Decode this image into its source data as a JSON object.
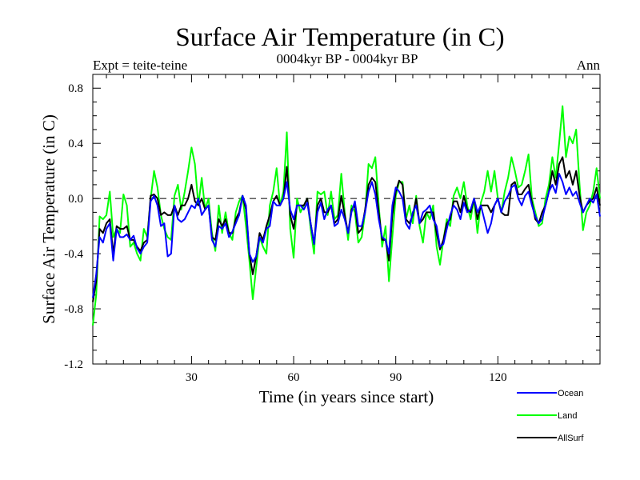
{
  "chart_data": {
    "type": "line",
    "title": "Surface Air Temperature (in C)",
    "subtitle": "0004kyr BP - 0004kyr BP",
    "left_label": "Expt = teite-teine",
    "right_label": "Ann",
    "xlabel": "Time (in years since start)",
    "ylabel": "Surface Air Temperature (in C)",
    "xlim": [
      1,
      150
    ],
    "ylim": [
      -1.2,
      0.9
    ],
    "xticks": [
      30,
      60,
      90,
      120
    ],
    "yticks": [
      -1.2,
      -0.8,
      -0.4,
      0.0,
      0.4,
      0.8
    ],
    "ytick_labels": [
      "-1.2",
      "-0.8",
      "-0.4",
      "0.0",
      "0.4",
      "0.8"
    ],
    "zero_line": true,
    "legend_position": "bottom-right",
    "series": [
      {
        "name": "Ocean",
        "color": "#0000ff",
        "values": [
          -0.72,
          -0.55,
          -0.28,
          -0.32,
          -0.22,
          -0.18,
          -0.45,
          -0.22,
          -0.28,
          -0.28,
          -0.26,
          -0.3,
          -0.27,
          -0.36,
          -0.4,
          -0.35,
          -0.32,
          -0.02,
          0.02,
          -0.05,
          -0.2,
          -0.18,
          -0.42,
          -0.4,
          -0.05,
          -0.15,
          -0.17,
          -0.15,
          -0.1,
          -0.05,
          -0.07,
          0.0,
          -0.12,
          -0.08,
          -0.05,
          -0.3,
          -0.35,
          -0.2,
          -0.22,
          -0.18,
          -0.28,
          -0.24,
          -0.18,
          -0.12,
          0.02,
          -0.05,
          -0.4,
          -0.46,
          -0.42,
          -0.28,
          -0.32,
          -0.22,
          -0.2,
          -0.02,
          -0.05,
          -0.05,
          0.0,
          0.12,
          -0.08,
          -0.15,
          -0.05,
          -0.05,
          -0.08,
          -0.03,
          -0.18,
          -0.33,
          -0.1,
          -0.03,
          -0.15,
          -0.08,
          -0.05,
          -0.2,
          -0.18,
          -0.08,
          -0.15,
          -0.25,
          -0.1,
          -0.02,
          -0.2,
          -0.2,
          -0.1,
          0.05,
          0.12,
          0.03,
          -0.15,
          -0.28,
          -0.3,
          -0.4,
          -0.05,
          0.08,
          0.05,
          0.0,
          -0.18,
          -0.22,
          -0.1,
          -0.05,
          -0.18,
          -0.1,
          -0.08,
          -0.05,
          -0.15,
          -0.2,
          -0.35,
          -0.33,
          -0.22,
          -0.12,
          -0.05,
          -0.08,
          -0.15,
          -0.03,
          -0.1,
          -0.08,
          0.0,
          -0.1,
          -0.05,
          -0.15,
          -0.25,
          -0.18,
          -0.05,
          0.0,
          -0.1,
          -0.02,
          0.02,
          0.08,
          0.1,
          0.0,
          -0.05,
          0.02,
          0.05,
          -0.05,
          -0.13,
          -0.18,
          -0.15,
          -0.05,
          0.05,
          0.1,
          0.04,
          0.18,
          0.12,
          0.03,
          0.08,
          0.02,
          0.05,
          -0.03,
          -0.1,
          -0.05,
          0.0,
          -0.03,
          0.03,
          -0.13
        ]
      },
      {
        "name": "Land",
        "color": "#00ff00",
        "values": [
          -0.92,
          -0.7,
          -0.13,
          -0.15,
          -0.12,
          0.05,
          -0.28,
          -0.22,
          -0.25,
          0.03,
          -0.05,
          -0.35,
          -0.32,
          -0.4,
          -0.45,
          -0.22,
          -0.28,
          0.0,
          0.2,
          0.08,
          -0.12,
          -0.22,
          -0.28,
          -0.3,
          0.02,
          0.1,
          -0.08,
          0.05,
          0.2,
          0.37,
          0.25,
          -0.05,
          0.15,
          -0.08,
          0.0,
          -0.25,
          -0.38,
          -0.05,
          -0.25,
          -0.1,
          -0.25,
          -0.3,
          -0.1,
          -0.02,
          0.02,
          -0.2,
          -0.45,
          -0.73,
          -0.5,
          -0.28,
          -0.35,
          -0.4,
          -0.05,
          0.05,
          0.22,
          -0.05,
          0.05,
          0.48,
          -0.22,
          -0.43,
          0.0,
          -0.1,
          -0.05,
          0.0,
          -0.22,
          -0.4,
          0.05,
          0.03,
          0.05,
          -0.12,
          0.05,
          -0.15,
          -0.12,
          0.18,
          -0.1,
          -0.3,
          -0.05,
          -0.1,
          -0.32,
          -0.28,
          -0.1,
          0.25,
          0.22,
          0.3,
          -0.05,
          -0.35,
          -0.2,
          -0.6,
          -0.28,
          0.02,
          0.12,
          0.12,
          -0.15,
          -0.05,
          -0.18,
          0.02,
          -0.2,
          -0.32,
          -0.1,
          -0.15,
          -0.05,
          -0.35,
          -0.48,
          -0.3,
          -0.15,
          -0.2,
          0.02,
          0.08,
          0.0,
          0.12,
          -0.05,
          -0.15,
          0.0,
          -0.25,
          -0.03,
          0.05,
          0.2,
          0.05,
          0.2,
          0.0,
          -0.1,
          0.05,
          0.15,
          0.3,
          0.2,
          0.08,
          0.1,
          0.2,
          0.32,
          0.0,
          -0.1,
          -0.2,
          -0.18,
          0.0,
          0.1,
          0.3,
          0.15,
          0.4,
          0.67,
          0.3,
          0.45,
          0.4,
          0.5,
          0.1,
          -0.23,
          -0.1,
          -0.05,
          0.05,
          0.22,
          0.0
        ]
      },
      {
        "name": "AllSurf",
        "color": "#000000",
        "values": [
          -0.75,
          -0.6,
          -0.22,
          -0.25,
          -0.18,
          -0.15,
          -0.4,
          -0.2,
          -0.22,
          -0.22,
          -0.2,
          -0.3,
          -0.3,
          -0.35,
          -0.38,
          -0.32,
          -0.3,
          0.02,
          0.03,
          0.0,
          -0.12,
          -0.1,
          -0.12,
          -0.12,
          -0.05,
          -0.12,
          -0.05,
          -0.05,
          0.0,
          0.1,
          -0.02,
          -0.05,
          0.0,
          -0.08,
          -0.05,
          -0.28,
          -0.3,
          -0.15,
          -0.2,
          -0.15,
          -0.25,
          -0.25,
          -0.15,
          -0.1,
          0.02,
          -0.08,
          -0.4,
          -0.55,
          -0.42,
          -0.25,
          -0.3,
          -0.2,
          -0.12,
          -0.02,
          0.02,
          -0.05,
          0.0,
          0.23,
          -0.12,
          -0.22,
          -0.05,
          -0.05,
          -0.05,
          0.0,
          -0.18,
          -0.33,
          -0.05,
          0.0,
          -0.1,
          -0.1,
          -0.05,
          -0.18,
          -0.15,
          0.02,
          -0.12,
          -0.25,
          -0.08,
          -0.05,
          -0.25,
          -0.22,
          -0.08,
          0.1,
          0.15,
          0.12,
          -0.1,
          -0.3,
          -0.3,
          -0.45,
          -0.12,
          0.05,
          0.13,
          0.1,
          -0.15,
          -0.18,
          -0.12,
          0.0,
          -0.18,
          -0.15,
          -0.1,
          -0.1,
          -0.1,
          -0.25,
          -0.37,
          -0.3,
          -0.18,
          -0.15,
          -0.02,
          -0.02,
          -0.1,
          0.02,
          -0.08,
          -0.1,
          0.0,
          -0.15,
          -0.05,
          -0.05,
          -0.05,
          -0.1,
          -0.05,
          0.0,
          -0.1,
          -0.12,
          -0.12,
          0.1,
          0.12,
          0.03,
          0.03,
          0.07,
          0.1,
          -0.03,
          -0.15,
          -0.18,
          -0.1,
          -0.05,
          0.05,
          0.2,
          0.1,
          0.25,
          0.3,
          0.15,
          0.2,
          0.1,
          0.2,
          0.02,
          -0.1,
          -0.05,
          -0.02,
          0.0,
          0.08,
          -0.05
        ]
      }
    ]
  }
}
